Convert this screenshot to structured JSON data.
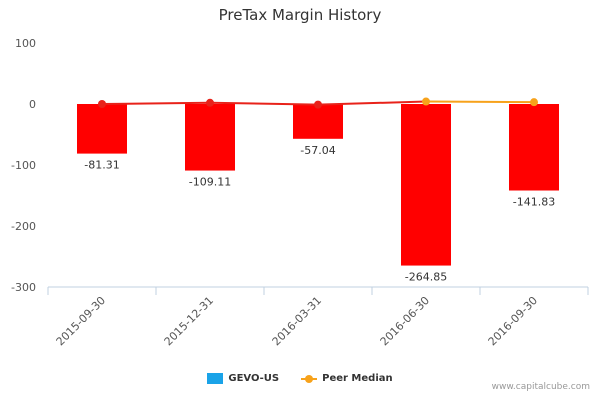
{
  "title": "PreTax Margin History",
  "credit": "www.capitalcube.com",
  "colors": {
    "bar": "#ff0000",
    "company_line": "#e8221a",
    "peer_line": "#f7a21b",
    "legend_company": "#1aa3e8",
    "axis": "#c0d0e0",
    "text": "#333333"
  },
  "chart_data": {
    "type": "bar",
    "title": "PreTax Margin History",
    "categories": [
      "2015-09-30",
      "2015-12-31",
      "2016-03-31",
      "2016-06-30",
      "2016-09-30"
    ],
    "series": [
      {
        "name": "GEVO-US",
        "type": "bar",
        "values": [
          -81.31,
          -109.11,
          -57.04,
          -264.85,
          -141.83
        ]
      },
      {
        "name": "Peer Median",
        "type": "line",
        "values": [
          2,
          3,
          0,
          4,
          3
        ]
      }
    ],
    "company_trend": [
      0,
      2,
      -1,
      null,
      null
    ],
    "data_labels": [
      "-81.31",
      "-109.11",
      "-57.04",
      "-264.85",
      "-141.83"
    ],
    "yticks": [
      100,
      0,
      -100,
      -200,
      -300
    ],
    "ylim": [
      -300,
      100
    ],
    "xlabel": "",
    "ylabel": "",
    "legend_position": "bottom",
    "grid": false
  },
  "legend": {
    "items": [
      {
        "label": "GEVO-US",
        "kind": "box"
      },
      {
        "label": "Peer Median",
        "kind": "line"
      }
    ]
  }
}
